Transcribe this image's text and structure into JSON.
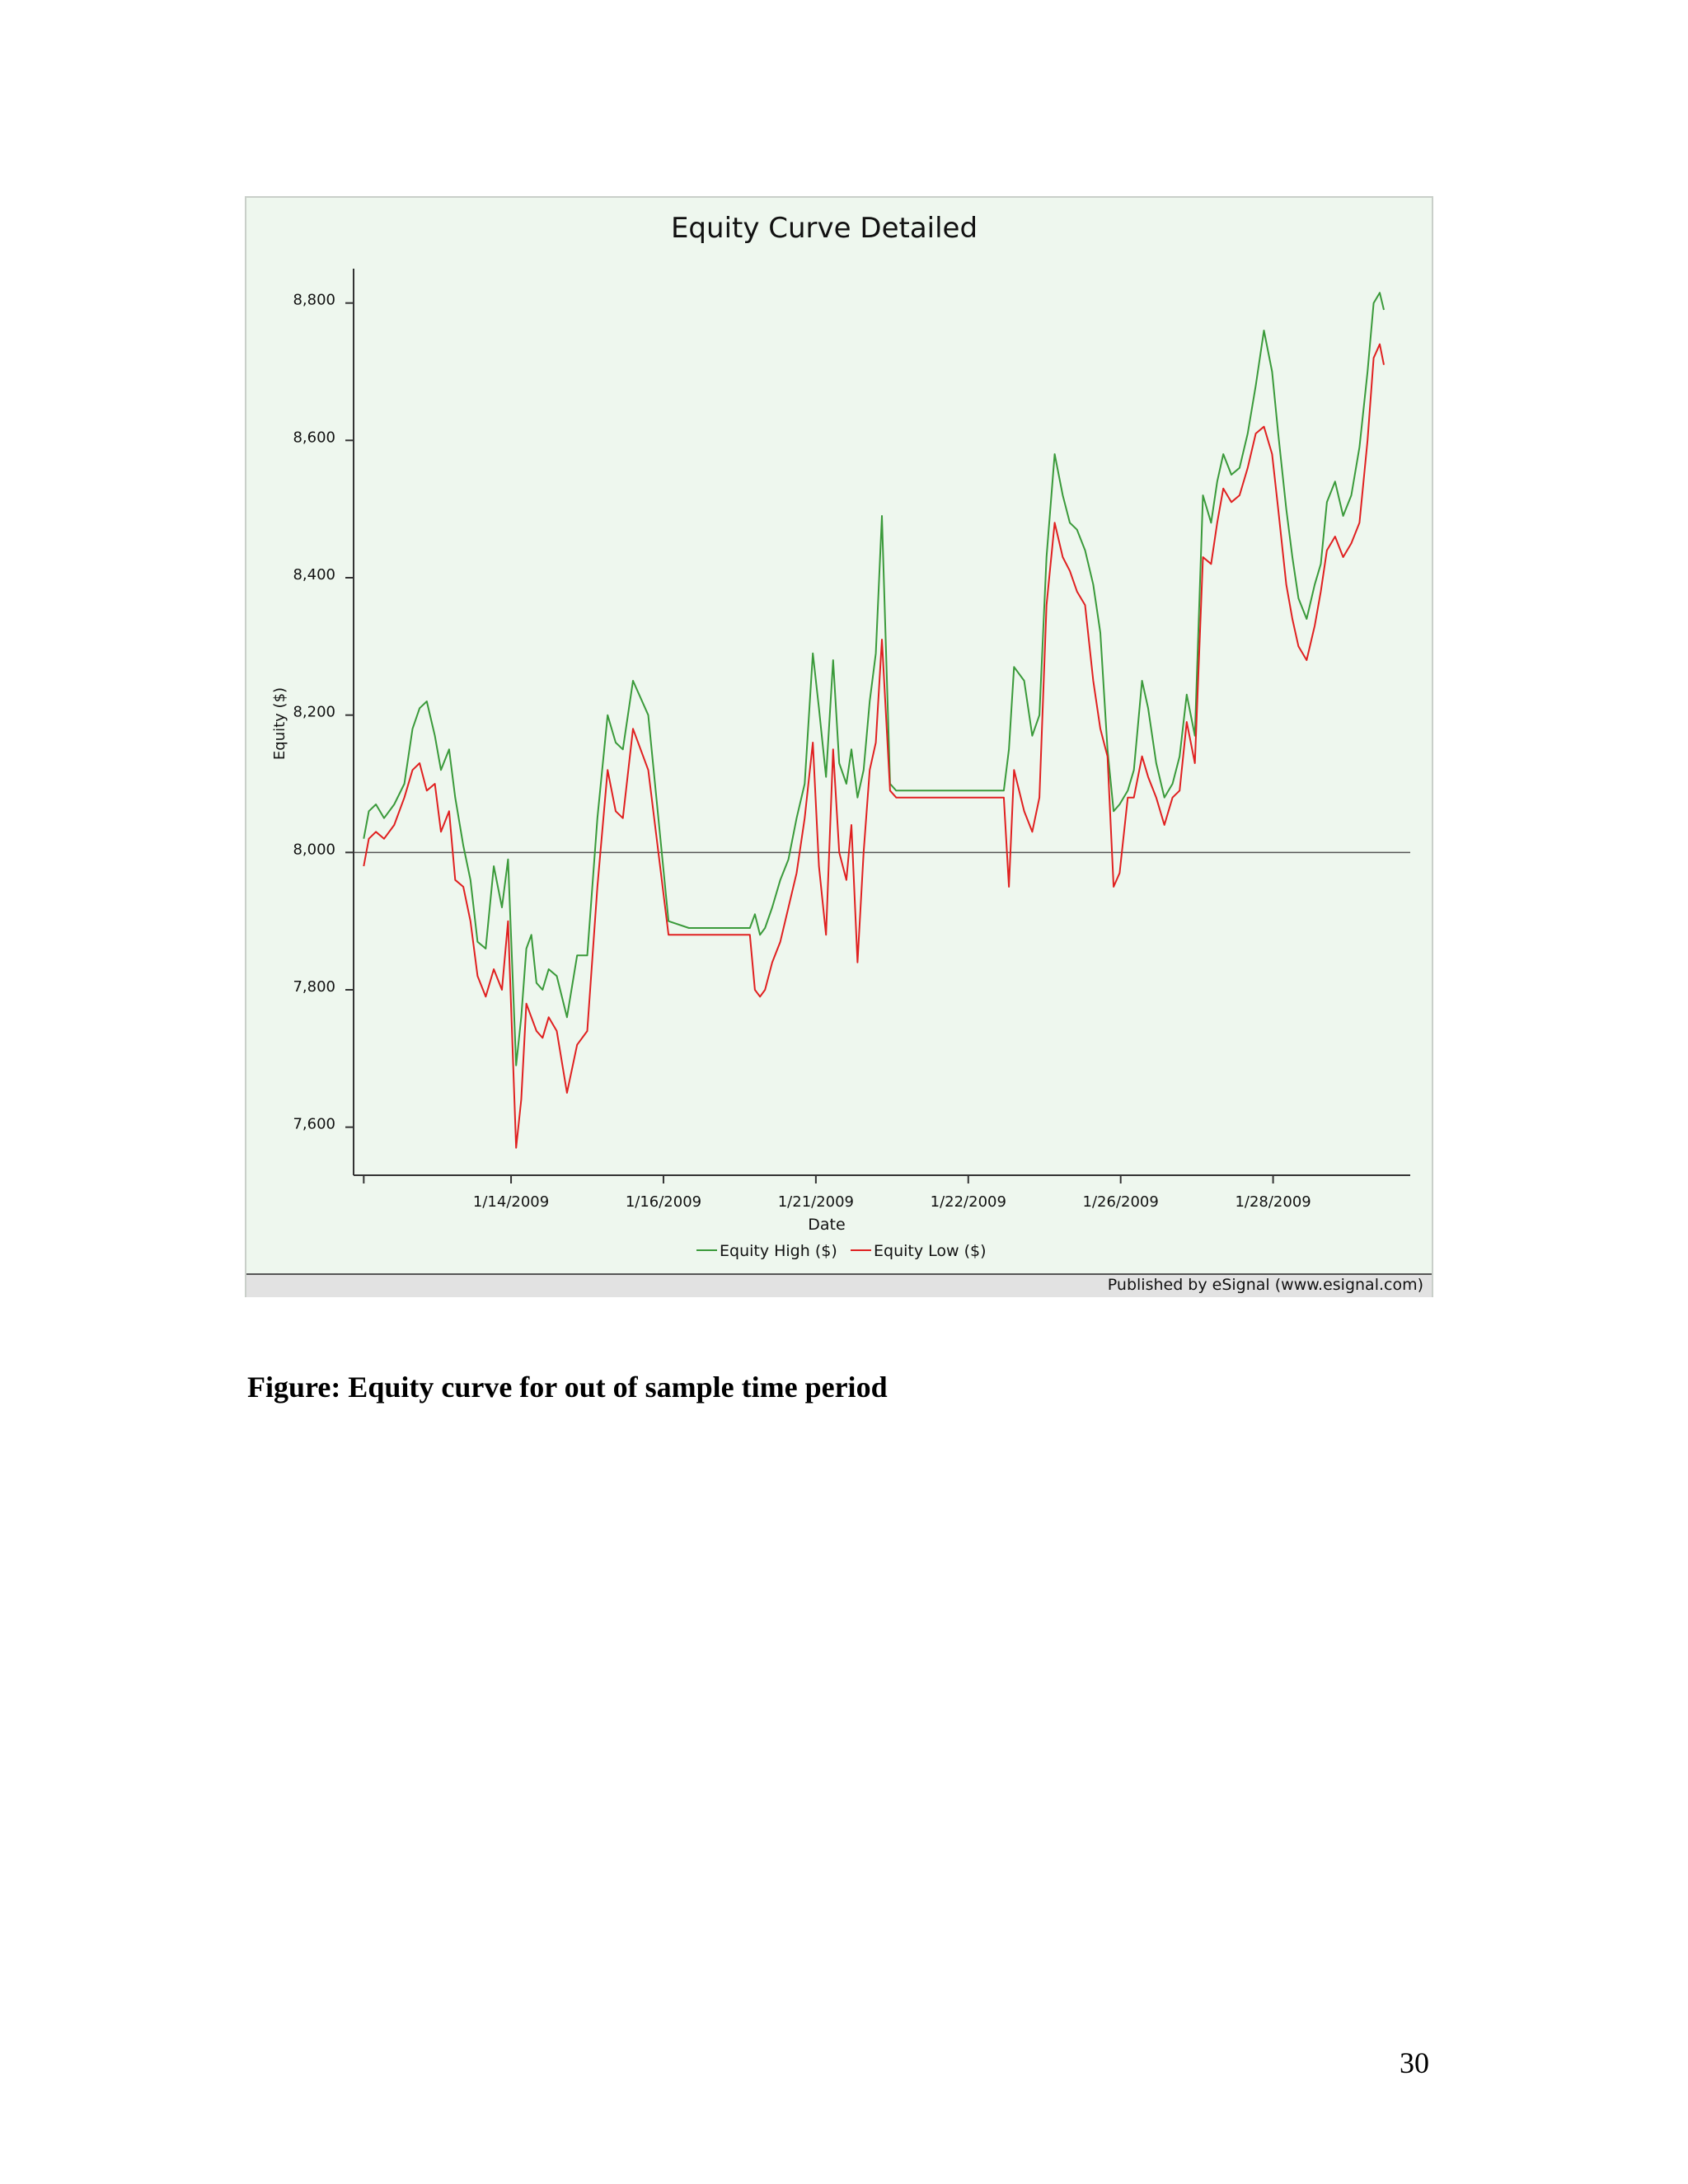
{
  "page": {
    "caption": "Figure: Equity curve for out of sample time period",
    "page_number": "30"
  },
  "chart_data": {
    "type": "line",
    "title": "Equity Curve Detailed",
    "xlabel": "Date",
    "ylabel": "Equity ($)",
    "ylim": [
      7530,
      8850
    ],
    "yticks": [
      7600,
      7800,
      8000,
      8200,
      8400,
      8600,
      8800
    ],
    "ytick_labels": [
      "7,600",
      "7,800",
      "8,000",
      "8,200",
      "8,400",
      "8,600",
      "8,800"
    ],
    "xlim": [
      0,
      1.04
    ],
    "xticks": [
      0.01,
      0.155,
      0.305,
      0.455,
      0.605,
      0.755,
      0.905
    ],
    "xtick_labels": [
      "",
      "1/14/2009",
      "1/16/2009",
      "1/21/2009",
      "1/22/2009",
      "1/26/2009",
      "1/28/2009"
    ],
    "reference_line": 8000,
    "legend": [
      "Equity High ($)",
      "Equity Low ($)"
    ],
    "publisher": "Published by eSignal (www.esignal.com)",
    "series": [
      {
        "name": "Equity High ($)",
        "color": "#3a9a3a",
        "x": [
          0.01,
          0.015,
          0.022,
          0.03,
          0.04,
          0.05,
          0.058,
          0.065,
          0.072,
          0.08,
          0.086,
          0.094,
          0.1,
          0.108,
          0.115,
          0.122,
          0.13,
          0.138,
          0.146,
          0.152,
          0.16,
          0.165,
          0.17,
          0.175,
          0.18,
          0.186,
          0.192,
          0.2,
          0.21,
          0.22,
          0.23,
          0.24,
          0.25,
          0.258,
          0.265,
          0.275,
          0.29,
          0.31,
          0.33,
          0.36,
          0.39,
          0.395,
          0.4,
          0.405,
          0.412,
          0.42,
          0.428,
          0.436,
          0.444,
          0.452,
          0.458,
          0.465,
          0.472,
          0.478,
          0.485,
          0.49,
          0.496,
          0.502,
          0.508,
          0.514,
          0.52,
          0.528,
          0.534,
          0.54,
          0.546,
          0.552,
          0.556,
          0.56,
          0.58,
          0.62,
          0.64,
          0.645,
          0.65,
          0.66,
          0.668,
          0.675,
          0.682,
          0.69,
          0.698,
          0.705,
          0.712,
          0.72,
          0.728,
          0.735,
          0.742,
          0.748,
          0.754,
          0.762,
          0.768,
          0.776,
          0.782,
          0.79,
          0.798,
          0.806,
          0.813,
          0.82,
          0.828,
          0.836,
          0.844,
          0.85,
          0.856,
          0.864,
          0.872,
          0.88,
          0.888,
          0.896,
          0.904,
          0.91,
          0.918,
          0.924,
          0.93,
          0.938,
          0.946,
          0.952,
          0.958,
          0.966,
          0.974,
          0.982,
          0.99,
          0.998,
          1.004,
          1.01,
          1.014
        ],
        "values": [
          8020,
          8060,
          8070,
          8050,
          8070,
          8100,
          8180,
          8210,
          8220,
          8170,
          8120,
          8150,
          8080,
          8010,
          7960,
          7870,
          7860,
          7980,
          7920,
          7990,
          7690,
          7760,
          7860,
          7880,
          7810,
          7800,
          7830,
          7820,
          7760,
          7850,
          7850,
          8050,
          8200,
          8160,
          8150,
          8250,
          8200,
          7900,
          7890,
          7890,
          7890,
          7910,
          7880,
          7890,
          7920,
          7960,
          7990,
          8050,
          8100,
          8290,
          8210,
          8110,
          8280,
          8130,
          8100,
          8150,
          8080,
          8120,
          8220,
          8290,
          8490,
          8100,
          8090,
          8090,
          8090,
          8090,
          8090,
          8090,
          8090,
          8090,
          8090,
          8150,
          8270,
          8250,
          8170,
          8200,
          8430,
          8580,
          8520,
          8480,
          8470,
          8440,
          8390,
          8320,
          8150,
          8060,
          8070,
          8090,
          8120,
          8250,
          8210,
          8130,
          8080,
          8100,
          8140,
          8230,
          8170,
          8520,
          8480,
          8540,
          8580,
          8550,
          8560,
          8610,
          8680,
          8760,
          8700,
          8610,
          8500,
          8430,
          8370,
          8340,
          8390,
          8420,
          8510,
          8540,
          8490,
          8520,
          8590,
          8700,
          8800,
          8815,
          8790
        ]
      },
      {
        "name": "Equity Low ($)",
        "color": "#e02020",
        "x": [
          0.01,
          0.015,
          0.022,
          0.03,
          0.04,
          0.05,
          0.058,
          0.065,
          0.072,
          0.08,
          0.086,
          0.094,
          0.1,
          0.108,
          0.115,
          0.122,
          0.13,
          0.138,
          0.146,
          0.152,
          0.16,
          0.165,
          0.17,
          0.175,
          0.18,
          0.186,
          0.192,
          0.2,
          0.21,
          0.22,
          0.23,
          0.24,
          0.25,
          0.258,
          0.265,
          0.275,
          0.29,
          0.31,
          0.33,
          0.36,
          0.39,
          0.395,
          0.4,
          0.405,
          0.412,
          0.42,
          0.428,
          0.436,
          0.444,
          0.452,
          0.458,
          0.465,
          0.472,
          0.478,
          0.485,
          0.49,
          0.496,
          0.502,
          0.508,
          0.514,
          0.52,
          0.528,
          0.534,
          0.54,
          0.546,
          0.552,
          0.556,
          0.56,
          0.58,
          0.62,
          0.64,
          0.645,
          0.65,
          0.66,
          0.668,
          0.675,
          0.682,
          0.69,
          0.698,
          0.705,
          0.712,
          0.72,
          0.728,
          0.735,
          0.742,
          0.748,
          0.754,
          0.762,
          0.768,
          0.776,
          0.782,
          0.79,
          0.798,
          0.806,
          0.813,
          0.82,
          0.828,
          0.836,
          0.844,
          0.85,
          0.856,
          0.864,
          0.872,
          0.88,
          0.888,
          0.896,
          0.904,
          0.91,
          0.918,
          0.924,
          0.93,
          0.938,
          0.946,
          0.952,
          0.958,
          0.966,
          0.974,
          0.982,
          0.99,
          0.998,
          1.004,
          1.01,
          1.014
        ],
        "values": [
          7980,
          8020,
          8030,
          8020,
          8040,
          8080,
          8120,
          8130,
          8090,
          8100,
          8030,
          8060,
          7960,
          7950,
          7900,
          7820,
          7790,
          7830,
          7800,
          7900,
          7570,
          7640,
          7780,
          7760,
          7740,
          7730,
          7760,
          7740,
          7650,
          7720,
          7740,
          7950,
          8120,
          8060,
          8050,
          8180,
          8120,
          7880,
          7880,
          7880,
          7880,
          7800,
          7790,
          7800,
          7840,
          7870,
          7920,
          7970,
          8050,
          8160,
          7980,
          7880,
          8150,
          8000,
          7960,
          8040,
          7840,
          8000,
          8120,
          8160,
          8310,
          8090,
          8080,
          8080,
          8080,
          8080,
          8080,
          8080,
          8080,
          8080,
          8080,
          7950,
          8120,
          8060,
          8030,
          8080,
          8360,
          8480,
          8430,
          8410,
          8380,
          8360,
          8250,
          8180,
          8140,
          7950,
          7970,
          8080,
          8080,
          8140,
          8110,
          8080,
          8040,
          8080,
          8090,
          8190,
          8130,
          8430,
          8420,
          8480,
          8530,
          8510,
          8520,
          8560,
          8610,
          8620,
          8580,
          8500,
          8390,
          8340,
          8300,
          8280,
          8330,
          8380,
          8440,
          8460,
          8430,
          8450,
          8480,
          8600,
          8720,
          8740,
          8710
        ]
      }
    ]
  }
}
